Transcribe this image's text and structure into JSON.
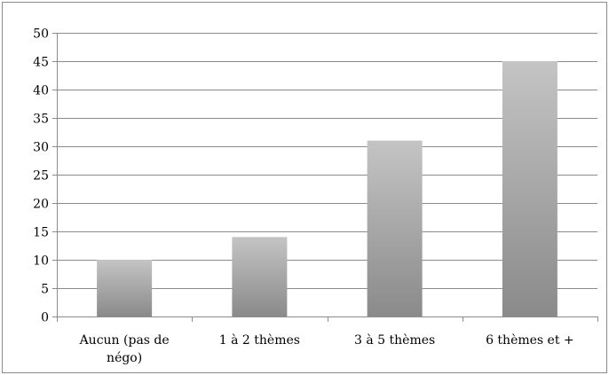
{
  "chart_data": {
    "type": "bar",
    "categories": [
      [
        "Aucun (pas de",
        "négo)"
      ],
      [
        "1 à 2 thèmes"
      ],
      [
        "3 à 5 thèmes"
      ],
      [
        "6 thèmes et +"
      ]
    ],
    "values": [
      10,
      14,
      31,
      45
    ],
    "ylim": [
      0,
      50
    ],
    "ytick_labels": [
      "0",
      "5",
      "10",
      "15",
      "20",
      "25",
      "30",
      "35",
      "40",
      "45",
      "50"
    ],
    "grid": true,
    "legend": false,
    "bar_gradient": [
      "#c4c4c4",
      "#8a8a8a"
    ]
  }
}
